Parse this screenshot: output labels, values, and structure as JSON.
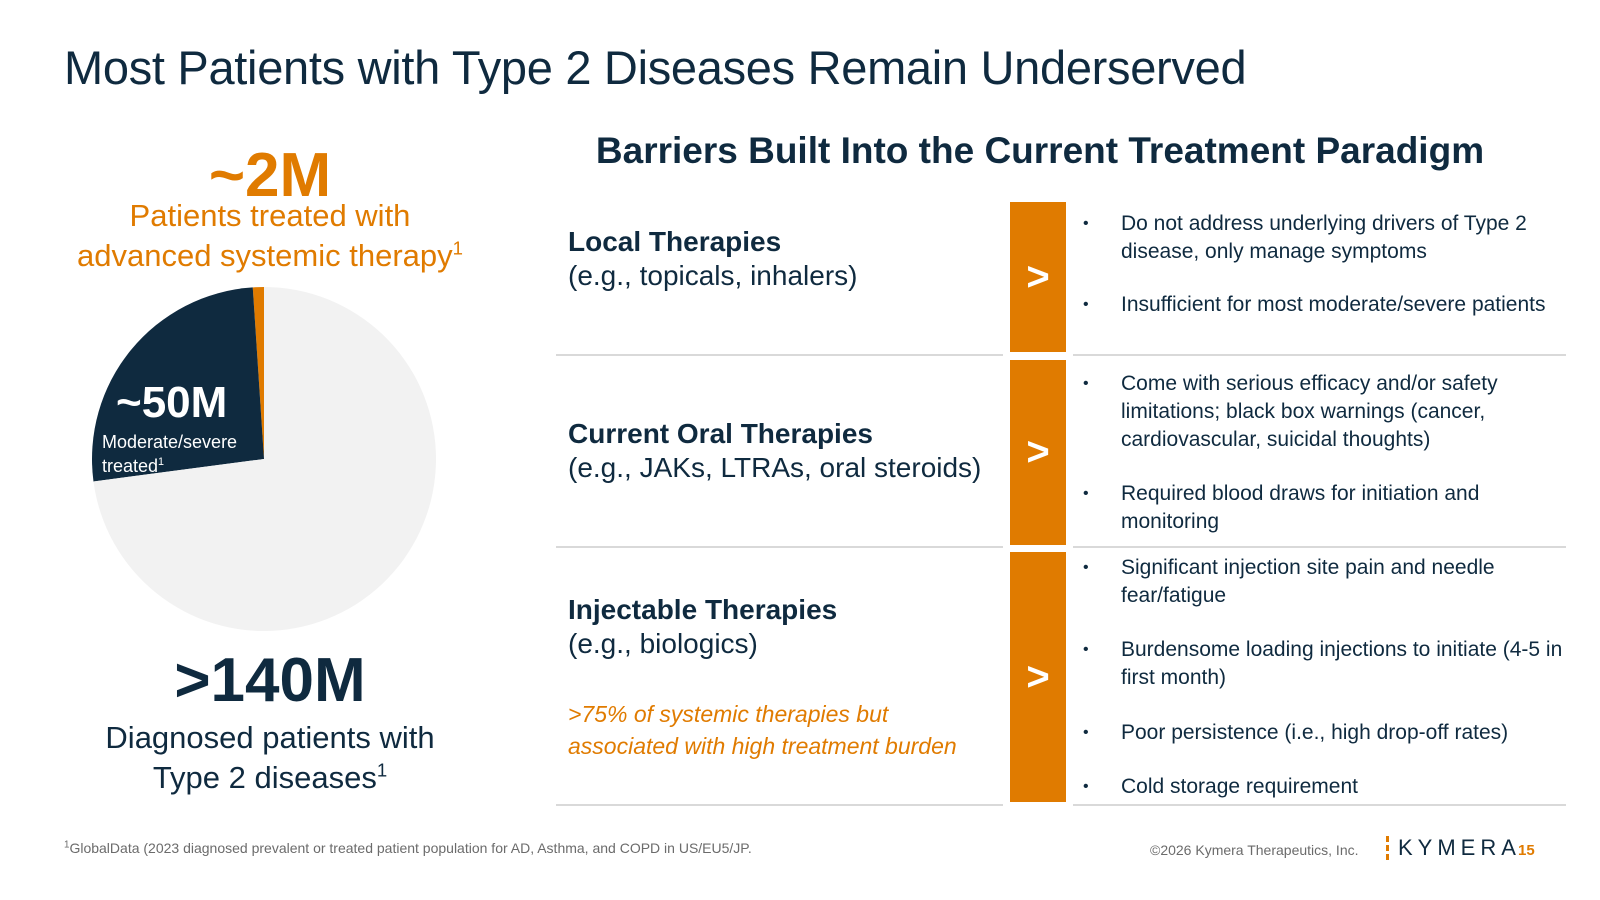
{
  "slide": {
    "title": "Most Patients with Type 2 Diseases Remain Underserved"
  },
  "left": {
    "top_stat": {
      "value": "~2M",
      "label_line1": "Patients treated with",
      "label_line2": "advanced systemic therapy",
      "label_sup": "1"
    },
    "pie_stat": {
      "value": "~50M",
      "label_line1": "Moderate/severe",
      "label_line2": "treated",
      "label_sup": "1"
    },
    "bottom_stat": {
      "value": ">140M",
      "label_line1": "Diagnosed patients with",
      "label_line2": "Type 2 diseases",
      "label_sup": "1"
    }
  },
  "chart_data": {
    "type": "pie",
    "slices": [
      {
        "label": "~2M",
        "value": 2,
        "color": "#e07b00"
      },
      {
        "label": "~50M",
        "value": 50,
        "color": "#0f2a3f"
      },
      {
        "label": ">140M",
        "value": 140,
        "color": "#f2f2f2"
      }
    ],
    "start_angle_deg": 0,
    "direction": "counterclockwise"
  },
  "right": {
    "heading": "Barriers Built Into the Current Treatment Paradigm",
    "arrow_glyph": ">",
    "rows": [
      {
        "title": "Local Therapies",
        "subtitle": "(e.g., topicals, inhalers)",
        "note_line1": "",
        "note_line2": "",
        "bullets": [
          "Do not address underlying drivers of Type 2 disease, only manage symptoms",
          "Insufficient for most moderate/severe patients"
        ]
      },
      {
        "title": "Current Oral Therapies",
        "subtitle": "(e.g., JAKs, LTRAs, oral steroids)",
        "note_line1": "",
        "note_line2": "",
        "bullets": [
          "Come with serious efficacy and/or safety limitations; black box warnings (cancer, cardiovascular, suicidal thoughts)",
          "Required blood draws for initiation and monitoring"
        ]
      },
      {
        "title": "Injectable Therapies",
        "subtitle": "(e.g., biologics)",
        "note_line1": ">75% of systemic therapies but",
        "note_line2": "associated with high treatment burden",
        "bullets": [
          "Significant injection site pain and needle fear/fatigue",
          "Burdensome loading injections to initiate (4-5 in first month)",
          "Poor persistence (i.e., high drop-off rates)",
          "Cold storage requirement"
        ]
      }
    ]
  },
  "footer": {
    "footnote_sup": "1",
    "footnote": "GlobalData (2023 diagnosed prevalent or treated patient population for AD, Asthma, and COPD in US/EU5/JP.",
    "copyright": "©2026 Kymera Therapeutics, Inc.",
    "logo_text": "KYMERA",
    "page_number": "15"
  },
  "colors": {
    "navy": "#0f2a3f",
    "orange": "#e07b00",
    "light_gray": "#f2f2f2"
  }
}
